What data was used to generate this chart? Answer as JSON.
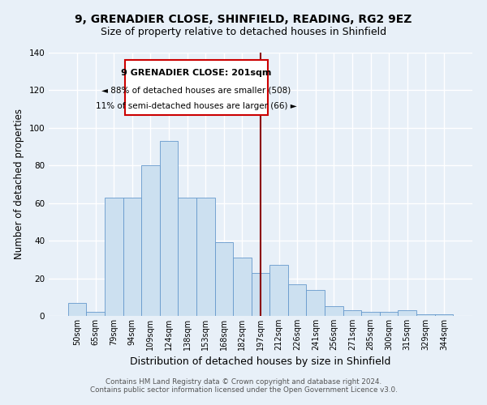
{
  "title1": "9, GRENADIER CLOSE, SHINFIELD, READING, RG2 9EZ",
  "title2": "Size of property relative to detached houses in Shinfield",
  "xlabel": "Distribution of detached houses by size in Shinfield",
  "ylabel": "Number of detached properties",
  "categories": [
    "50sqm",
    "65sqm",
    "79sqm",
    "94sqm",
    "109sqm",
    "124sqm",
    "138sqm",
    "153sqm",
    "168sqm",
    "182sqm",
    "197sqm",
    "212sqm",
    "226sqm",
    "241sqm",
    "256sqm",
    "271sqm",
    "285sqm",
    "300sqm",
    "315sqm",
    "329sqm",
    "344sqm"
  ],
  "values": [
    7,
    2,
    63,
    63,
    80,
    93,
    63,
    63,
    39,
    31,
    23,
    27,
    17,
    14,
    5,
    3,
    2,
    2,
    3,
    1,
    1
  ],
  "bar_color": "#cce0f0",
  "bar_edge_color": "#6699cc",
  "background_color": "#e8f0f8",
  "grid_color": "#ffffff",
  "ylim": [
    0,
    140
  ],
  "yticks": [
    0,
    20,
    40,
    60,
    80,
    100,
    120,
    140
  ],
  "property_size_idx": 10,
  "annotation_title": "9 GRENADIER CLOSE: 201sqm",
  "annotation_line1": "◄ 88% of detached houses are smaller (508)",
  "annotation_line2": "11% of semi-detached houses are larger (66) ►",
  "annotation_box_color": "#ffffff",
  "annotation_border_color": "#cc0000",
  "vline_color": "#8b0000",
  "footer1": "Contains HM Land Registry data © Crown copyright and database right 2024.",
  "footer2": "Contains public sector information licensed under the Open Government Licence v3.0.",
  "title_fontsize": 10,
  "subtitle_fontsize": 9,
  "tick_fontsize": 7,
  "ylabel_fontsize": 8.5,
  "xlabel_fontsize": 9
}
